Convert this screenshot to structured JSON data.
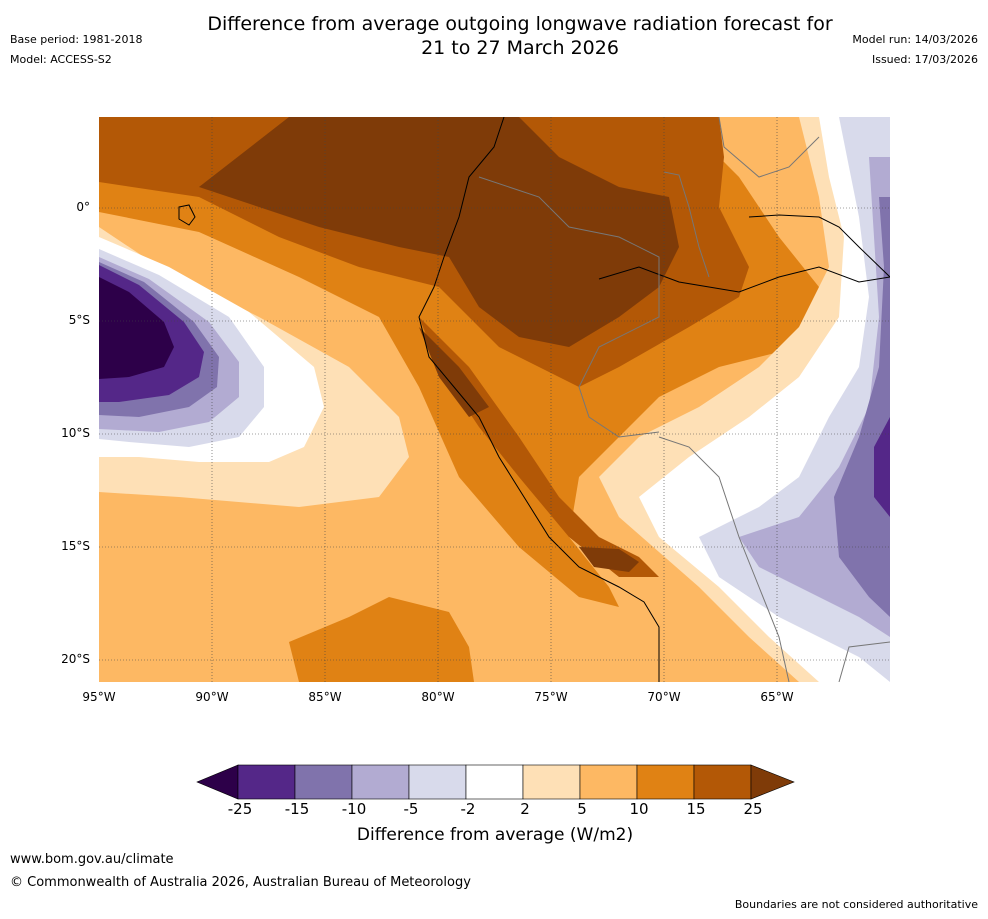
{
  "title_line1": "Difference from average outgoing longwave radiation forecast for",
  "title_line2": "21 to 27 March 2026",
  "meta": {
    "base_period": "Base period: 1981-2018",
    "model": "Model: ACCESS-S2",
    "model_run": "Model run: 14/03/2026",
    "issued": "Issued: 17/03/2026"
  },
  "map": {
    "lat_labels": [
      "0°",
      "5°S",
      "10°S",
      "15°S",
      "20°S"
    ],
    "lon_labels": [
      "95°W",
      "90°W",
      "85°W",
      "80°W",
      "75°W",
      "70°W",
      "65°W"
    ]
  },
  "colorbar": {
    "title": "Difference from average (W/m2)",
    "tick_labels": [
      "-25",
      "-15",
      "-10",
      "-5",
      "-2",
      "2",
      "5",
      "10",
      "15",
      "25"
    ],
    "colors": [
      "#2d0049",
      "#542788",
      "#8073ac",
      "#b2abd2",
      "#d8daeb",
      "#ffffff",
      "#fee0b6",
      "#fdb863",
      "#e08214",
      "#b35806",
      "#7f3b08"
    ]
  },
  "footer": {
    "url": "www.bom.gov.au/climate",
    "copyright": "© Commonwealth of Australia 2026, Australian Bureau of Meteorology",
    "note": "Boundaries are not considered authoritative"
  }
}
